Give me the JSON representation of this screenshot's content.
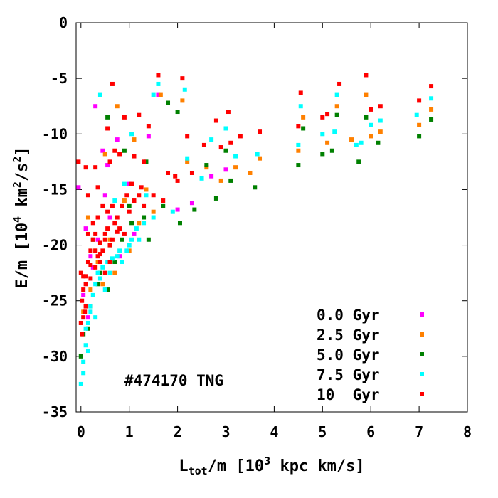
{
  "chart_data": {
    "type": "scatter",
    "annotation": "#474170 TNG",
    "xlabel": {
      "main": "L",
      "sub": "tot",
      "rest_a": "/m [10",
      "sup": "3",
      "rest_b": " kpc km/s]"
    },
    "ylabel": {
      "a": "E/m [10",
      "sup1": "4",
      "b": " km",
      "sup2": "2",
      "c": "/s",
      "sup3": "2",
      "d": "]"
    },
    "xlim": [
      -0.1,
      8
    ],
    "ylim": [
      -35,
      0
    ],
    "xticks": [
      "0",
      "1",
      "2",
      "3",
      "4",
      "5",
      "6",
      "7",
      "8"
    ],
    "yticks": [
      "0",
      "-5",
      "-10",
      "-15",
      "-20",
      "-25",
      "-30",
      "-35"
    ],
    "grid": false,
    "legend_position": "bottom-right",
    "series": [
      {
        "name": "0.0 Gyr",
        "color": "#ff00ff",
        "points": [
          [
            0.3,
            -7.5
          ],
          [
            0.45,
            -11.5
          ],
          [
            0.55,
            -12.8
          ],
          [
            0.75,
            -10.5
          ],
          [
            1.0,
            -14.5
          ],
          [
            1.4,
            -10.2
          ],
          [
            1.6,
            -6.5
          ],
          [
            2.0,
            -16.8
          ],
          [
            2.3,
            -16.2
          ],
          [
            2.7,
            -13.8
          ],
          [
            3.0,
            -13.2
          ],
          [
            -0.05,
            -14.8
          ],
          [
            0.1,
            -18.5
          ],
          [
            0.2,
            -21
          ],
          [
            0.35,
            -19.5
          ],
          [
            0.6,
            -17.5
          ],
          [
            0.05,
            -24.5
          ],
          [
            0.15,
            -26.5
          ],
          [
            0.25,
            -22
          ],
          [
            0.8,
            -21
          ],
          [
            1.1,
            -19
          ],
          [
            0.5,
            -15.5
          ]
        ]
      },
      {
        "name": "2.5 Gyr",
        "color": "#ff8000",
        "points": [
          [
            0.5,
            -11.8
          ],
          [
            0.75,
            -7.5
          ],
          [
            1.1,
            -10.5
          ],
          [
            1.65,
            -6.5
          ],
          [
            2.1,
            -7.0
          ],
          [
            2.6,
            -13.0
          ],
          [
            3.2,
            -13.0
          ],
          [
            3.7,
            -12.2
          ],
          [
            4.6,
            -8.5
          ],
          [
            5.1,
            -10.8
          ],
          [
            5.3,
            -7.5
          ],
          [
            5.9,
            -6.5
          ],
          [
            6.2,
            -9.8
          ],
          [
            7.0,
            -9.2
          ],
          [
            7.25,
            -7.8
          ],
          [
            0.15,
            -17.5
          ],
          [
            0.3,
            -20.5
          ],
          [
            0.45,
            -23.5
          ],
          [
            0.6,
            -19.5
          ],
          [
            0.9,
            -16
          ],
          [
            1.2,
            -18
          ],
          [
            1.5,
            -17
          ],
          [
            0.05,
            -26
          ],
          [
            0.2,
            -24
          ],
          [
            0.35,
            -21.5
          ],
          [
            0.7,
            -22.5
          ],
          [
            1.0,
            -20.5
          ],
          [
            1.35,
            -15
          ],
          [
            2.2,
            -12.5
          ],
          [
            2.9,
            -14.2
          ],
          [
            3.5,
            -13.5
          ],
          [
            4.5,
            -11.5
          ],
          [
            5.6,
            -10.5
          ],
          [
            6.0,
            -10.2
          ]
        ]
      },
      {
        "name": "5.0 Gyr",
        "color": "#008000",
        "points": [
          [
            0.55,
            -8.5
          ],
          [
            0.9,
            -11.5
          ],
          [
            1.35,
            -12.5
          ],
          [
            1.8,
            -7.2
          ],
          [
            2.0,
            -8.0
          ],
          [
            2.35,
            -16.8
          ],
          [
            2.8,
            -15.8
          ],
          [
            3.1,
            -14.2
          ],
          [
            3.6,
            -14.8
          ],
          [
            4.5,
            -12.8
          ],
          [
            5.0,
            -11.8
          ],
          [
            5.2,
            -11.5
          ],
          [
            5.3,
            -8.3
          ],
          [
            5.75,
            -12.5
          ],
          [
            6.15,
            -10.8
          ],
          [
            7.0,
            -10.2
          ],
          [
            7.25,
            -8.7
          ],
          [
            0.25,
            -19.5
          ],
          [
            0.4,
            -22.5
          ],
          [
            0.55,
            -24
          ],
          [
            0.7,
            -21.5
          ],
          [
            0.85,
            -19.5
          ],
          [
            1.05,
            -18
          ],
          [
            1.3,
            -17.5
          ],
          [
            1.7,
            -16.5
          ],
          [
            2.05,
            -18
          ],
          [
            0.05,
            -28
          ],
          [
            0.2,
            -25.5
          ],
          [
            0.35,
            -23.5
          ],
          [
            0.6,
            -20
          ],
          [
            1.0,
            -16.5
          ],
          [
            1.4,
            -19.5
          ],
          [
            3.0,
            -11.5
          ],
          [
            2.6,
            -12.8
          ],
          [
            4.6,
            -9.5
          ],
          [
            5.9,
            -8.5
          ],
          [
            0.0,
            -30
          ],
          [
            0.15,
            -27.5
          ]
        ]
      },
      {
        "name": "7.5 Gyr",
        "color": "#00ffff",
        "points": [
          [
            0.4,
            -6.5
          ],
          [
            1.05,
            -10.0
          ],
          [
            1.5,
            -6.5
          ],
          [
            1.6,
            -5.5
          ],
          [
            2.15,
            -6.0
          ],
          [
            2.7,
            -10.5
          ],
          [
            3.0,
            -9.5
          ],
          [
            3.65,
            -11.8
          ],
          [
            4.55,
            -7.5
          ],
          [
            5.0,
            -10.0
          ],
          [
            5.25,
            -9.8
          ],
          [
            5.3,
            -6.5
          ],
          [
            5.8,
            -10.8
          ],
          [
            6.0,
            -9.2
          ],
          [
            6.2,
            -8.8
          ],
          [
            6.95,
            -8.3
          ],
          [
            7.25,
            -6.8
          ],
          [
            0.0,
            -32.5
          ],
          [
            0.05,
            -30.5
          ],
          [
            0.1,
            -29
          ],
          [
            0.15,
            -27
          ],
          [
            0.2,
            -25.5
          ],
          [
            0.25,
            -24.5
          ],
          [
            0.3,
            -23.5
          ],
          [
            0.35,
            -22.5
          ],
          [
            0.45,
            -22
          ],
          [
            0.55,
            -21.5
          ],
          [
            0.65,
            -21.2
          ],
          [
            0.75,
            -21
          ],
          [
            0.85,
            -21.5
          ],
          [
            0.95,
            -20.5
          ],
          [
            1.05,
            -19.5
          ],
          [
            1.15,
            -18.5
          ],
          [
            1.3,
            -18
          ],
          [
            1.5,
            -17.5
          ],
          [
            1.9,
            -17
          ],
          [
            2.2,
            -12.2
          ],
          [
            2.5,
            -14
          ],
          [
            0.1,
            -27.5
          ],
          [
            0.2,
            -26
          ],
          [
            0.4,
            -23
          ],
          [
            0.5,
            -24
          ],
          [
            0.6,
            -22.5
          ],
          [
            0.8,
            -20.5
          ],
          [
            1.0,
            -20
          ],
          [
            1.2,
            -19.5
          ],
          [
            0.3,
            -26.5
          ],
          [
            0.15,
            -29.5
          ],
          [
            0.05,
            -31.5
          ],
          [
            1.35,
            -15.5
          ],
          [
            0.9,
            -14.5
          ],
          [
            0.7,
            -16
          ],
          [
            3.2,
            -12
          ],
          [
            4.5,
            -11
          ],
          [
            5.7,
            -11
          ]
        ]
      },
      {
        "name": "10  Gyr",
        "color": "#ff0000",
        "points": [
          [
            0.55,
            -9.5
          ],
          [
            0.65,
            -5.5
          ],
          [
            0.9,
            -8.5
          ],
          [
            1.2,
            -8.3
          ],
          [
            1.4,
            -9.3
          ],
          [
            1.6,
            -4.7
          ],
          [
            1.95,
            -13.8
          ],
          [
            2.1,
            -5.0
          ],
          [
            2.2,
            -10.2
          ],
          [
            2.55,
            -11.0
          ],
          [
            2.8,
            -8.8
          ],
          [
            3.05,
            -8.0
          ],
          [
            3.1,
            -10.8
          ],
          [
            3.7,
            -9.8
          ],
          [
            4.5,
            -9.3
          ],
          [
            4.55,
            -6.3
          ],
          [
            5.0,
            -8.5
          ],
          [
            5.1,
            -8.2
          ],
          [
            5.35,
            -5.5
          ],
          [
            5.9,
            -4.7
          ],
          [
            6.0,
            -7.8
          ],
          [
            6.2,
            -7.5
          ],
          [
            7.0,
            -7.0
          ],
          [
            7.25,
            -5.7
          ],
          [
            -0.05,
            -12.5
          ],
          [
            0.1,
            -13.0
          ],
          [
            0.3,
            -13.0
          ],
          [
            0.6,
            -12.5
          ],
          [
            0.8,
            -11.8
          ],
          [
            1.1,
            -12.0
          ],
          [
            0.0,
            -22.5
          ],
          [
            0.05,
            -24
          ],
          [
            0.1,
            -22.8
          ],
          [
            0.15,
            -21.5
          ],
          [
            0.2,
            -20.5
          ],
          [
            0.25,
            -19.5
          ],
          [
            0.3,
            -20.5
          ],
          [
            0.35,
            -21
          ],
          [
            0.4,
            -19.8
          ],
          [
            0.45,
            -20.5
          ],
          [
            0.5,
            -19.5
          ],
          [
            0.55,
            -18.5
          ],
          [
            0.6,
            -20
          ],
          [
            0.65,
            -19.5
          ],
          [
            0.7,
            -18
          ],
          [
            0.75,
            -17.5
          ],
          [
            0.8,
            -18.5
          ],
          [
            0.9,
            -19
          ],
          [
            1.0,
            -17
          ],
          [
            1.1,
            -16
          ],
          [
            1.2,
            -15.5
          ],
          [
            1.3,
            -16.5
          ],
          [
            1.5,
            -15.5
          ],
          [
            1.7,
            -16
          ],
          [
            0.05,
            -26.5
          ],
          [
            0.02,
            -28
          ],
          [
            0.0,
            -27
          ],
          [
            0.1,
            -25.5
          ],
          [
            0.2,
            -23
          ],
          [
            0.3,
            -22
          ],
          [
            0.4,
            -21.5
          ],
          [
            0.5,
            -22.5
          ],
          [
            0.05,
            -22.8
          ],
          [
            0.15,
            -19
          ],
          [
            0.25,
            -18
          ],
          [
            0.35,
            -17.5
          ],
          [
            0.45,
            -16.5
          ],
          [
            0.55,
            -17
          ],
          [
            0.65,
            -16.5
          ],
          [
            0.75,
            -18.8
          ],
          [
            0.85,
            -16.5
          ],
          [
            0.95,
            -15.5
          ],
          [
            1.05,
            -14.5
          ],
          [
            1.25,
            -14.8
          ],
          [
            0.5,
            -19
          ],
          [
            0.4,
            -20.8
          ],
          [
            0.6,
            -21.5
          ],
          [
            0.3,
            -19
          ],
          [
            0.2,
            -21.8
          ],
          [
            0.1,
            -23.5
          ],
          [
            0.02,
            -25
          ],
          [
            0.08,
            -26
          ],
          [
            1.8,
            -13.5
          ],
          [
            2.3,
            -13.5
          ],
          [
            2.9,
            -11.2
          ],
          [
            3.3,
            -10.2
          ],
          [
            2.0,
            -14.2
          ],
          [
            1.3,
            -12.5
          ],
          [
            0.15,
            -15.5
          ],
          [
            0.35,
            -14.8
          ],
          [
            0.7,
            -11.5
          ]
        ]
      }
    ]
  }
}
